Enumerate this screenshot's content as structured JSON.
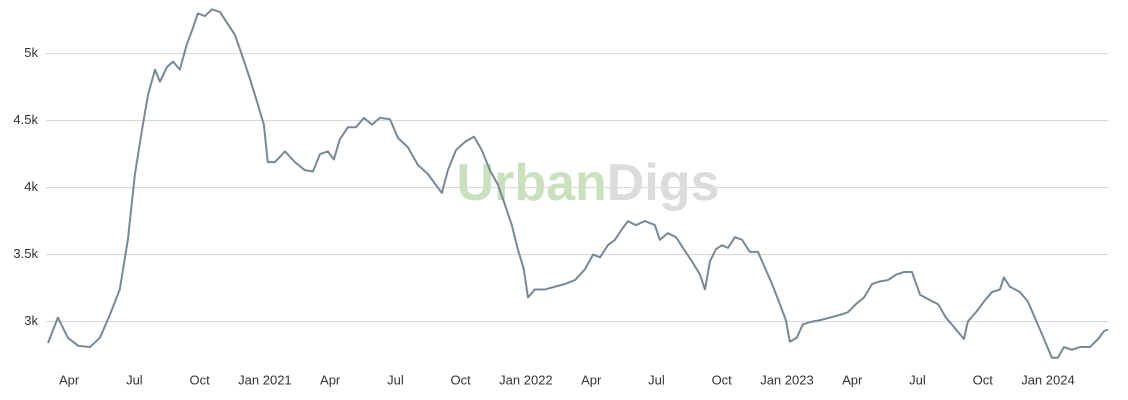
{
  "chart_data": {
    "type": "line",
    "watermark": [
      "Urban",
      "Digs"
    ],
    "color": "#768998",
    "grid": true,
    "x": [
      2020.169,
      2020.207,
      2020.245,
      2020.284,
      2020.33,
      2020.368,
      2020.406,
      2020.444,
      2020.475,
      2020.502,
      2020.529,
      2020.552,
      2020.579,
      2020.598,
      2020.625,
      2020.648,
      2020.674,
      2020.701,
      2020.724,
      2020.743,
      2020.77,
      2020.797,
      2020.828,
      2020.858,
      2020.885,
      2020.912,
      2020.943,
      2020.973,
      2020.996,
      2021.011,
      2021.038,
      2021.077,
      2021.115,
      2021.153,
      2021.184,
      2021.211,
      2021.241,
      2021.264,
      2021.287,
      2021.318,
      2021.349,
      2021.379,
      2021.41,
      2021.441,
      2021.479,
      2021.51,
      2021.548,
      2021.586,
      2021.625,
      2021.655,
      2021.678,
      2021.701,
      2021.732,
      2021.766,
      2021.801,
      2021.831,
      2021.862,
      2021.893,
      2021.92,
      2021.946,
      2021.969,
      2021.992,
      2022.008,
      2022.034,
      2022.073,
      2022.111,
      2022.149,
      2022.188,
      2022.226,
      2022.257,
      2022.284,
      2022.314,
      2022.341,
      2022.368,
      2022.391,
      2022.421,
      2022.456,
      2022.494,
      2022.513,
      2022.544,
      2022.575,
      2022.605,
      2022.636,
      2022.667,
      2022.686,
      2022.705,
      2022.728,
      2022.751,
      2022.774,
      2022.801,
      2022.828,
      2022.858,
      2022.889,
      2022.916,
      2022.943,
      2022.973,
      2022.996,
      2023.011,
      2023.038,
      2023.061,
      2023.096,
      2023.126,
      2023.165,
      2023.203,
      2023.234,
      2023.264,
      2023.295,
      2023.326,
      2023.356,
      2023.387,
      2023.418,
      2023.448,
      2023.479,
      2023.51,
      2023.548,
      2023.579,
      2023.609,
      2023.648,
      2023.678,
      2023.693,
      2023.724,
      2023.755,
      2023.785,
      2023.816,
      2023.831,
      2023.854,
      2023.893,
      2023.923,
      2023.954,
      2023.985,
      2024.015,
      2024.038,
      2024.061,
      2024.092,
      2024.123,
      2024.161,
      2024.192,
      2024.215,
      2024.23
    ],
    "values": [
      2840,
      3030,
      2880,
      2820,
      2810,
      2880,
      3050,
      3240,
      3610,
      4100,
      4430,
      4690,
      4880,
      4790,
      4900,
      4940,
      4880,
      5070,
      5190,
      5300,
      5280,
      5330,
      5310,
      5220,
      5140,
      4990,
      4810,
      4620,
      4470,
      4190,
      4190,
      4270,
      4190,
      4130,
      4120,
      4250,
      4270,
      4210,
      4360,
      4450,
      4450,
      4520,
      4470,
      4520,
      4510,
      4370,
      4300,
      4170,
      4100,
      4020,
      3960,
      4130,
      4280,
      4340,
      4380,
      4280,
      4130,
      4020,
      3870,
      3720,
      3540,
      3390,
      3180,
      3240,
      3240,
      3260,
      3280,
      3310,
      3390,
      3500,
      3480,
      3570,
      3610,
      3690,
      3750,
      3720,
      3750,
      3720,
      3610,
      3660,
      3630,
      3540,
      3450,
      3350,
      3240,
      3450,
      3540,
      3570,
      3550,
      3630,
      3610,
      3520,
      3520,
      3400,
      3280,
      3130,
      3010,
      2850,
      2880,
      2980,
      3000,
      3010,
      3030,
      3050,
      3070,
      3130,
      3180,
      3280,
      3300,
      3310,
      3350,
      3370,
      3370,
      3200,
      3160,
      3130,
      3030,
      2940,
      2870,
      3000,
      3070,
      3150,
      3220,
      3240,
      3330,
      3260,
      3220,
      3150,
      3010,
      2870,
      2730,
      2730,
      2810,
      2790,
      2810,
      2810,
      2870,
      2930,
      2940
    ],
    "xlim": [
      2020.169,
      2024.23
    ],
    "ylim": [
      2650,
      5370
    ],
    "xticks": [
      {
        "value": 2020.25,
        "label": "Apr"
      },
      {
        "value": 2020.5,
        "label": "Jul"
      },
      {
        "value": 2020.75,
        "label": "Oct"
      },
      {
        "value": 2021,
        "label": "Jan 2021"
      },
      {
        "value": 2021.25,
        "label": "Apr"
      },
      {
        "value": 2021.5,
        "label": "Jul"
      },
      {
        "value": 2021.75,
        "label": "Oct"
      },
      {
        "value": 2022,
        "label": "Jan 2022"
      },
      {
        "value": 2022.25,
        "label": "Apr"
      },
      {
        "value": 2022.5,
        "label": "Jul"
      },
      {
        "value": 2022.75,
        "label": "Oct"
      },
      {
        "value": 2023,
        "label": "Jan 2023"
      },
      {
        "value": 2023.25,
        "label": "Apr"
      },
      {
        "value": 2023.5,
        "label": "Jul"
      },
      {
        "value": 2023.75,
        "label": "Oct"
      },
      {
        "value": 2024,
        "label": "Jan 2024"
      }
    ],
    "yticks": [
      {
        "value": 3000,
        "label": "3k"
      },
      {
        "value": 3500,
        "label": "3.5k"
      },
      {
        "value": 4000,
        "label": "4k"
      },
      {
        "value": 4500,
        "label": "4.5k"
      },
      {
        "value": 5000,
        "label": "5k"
      }
    ]
  }
}
